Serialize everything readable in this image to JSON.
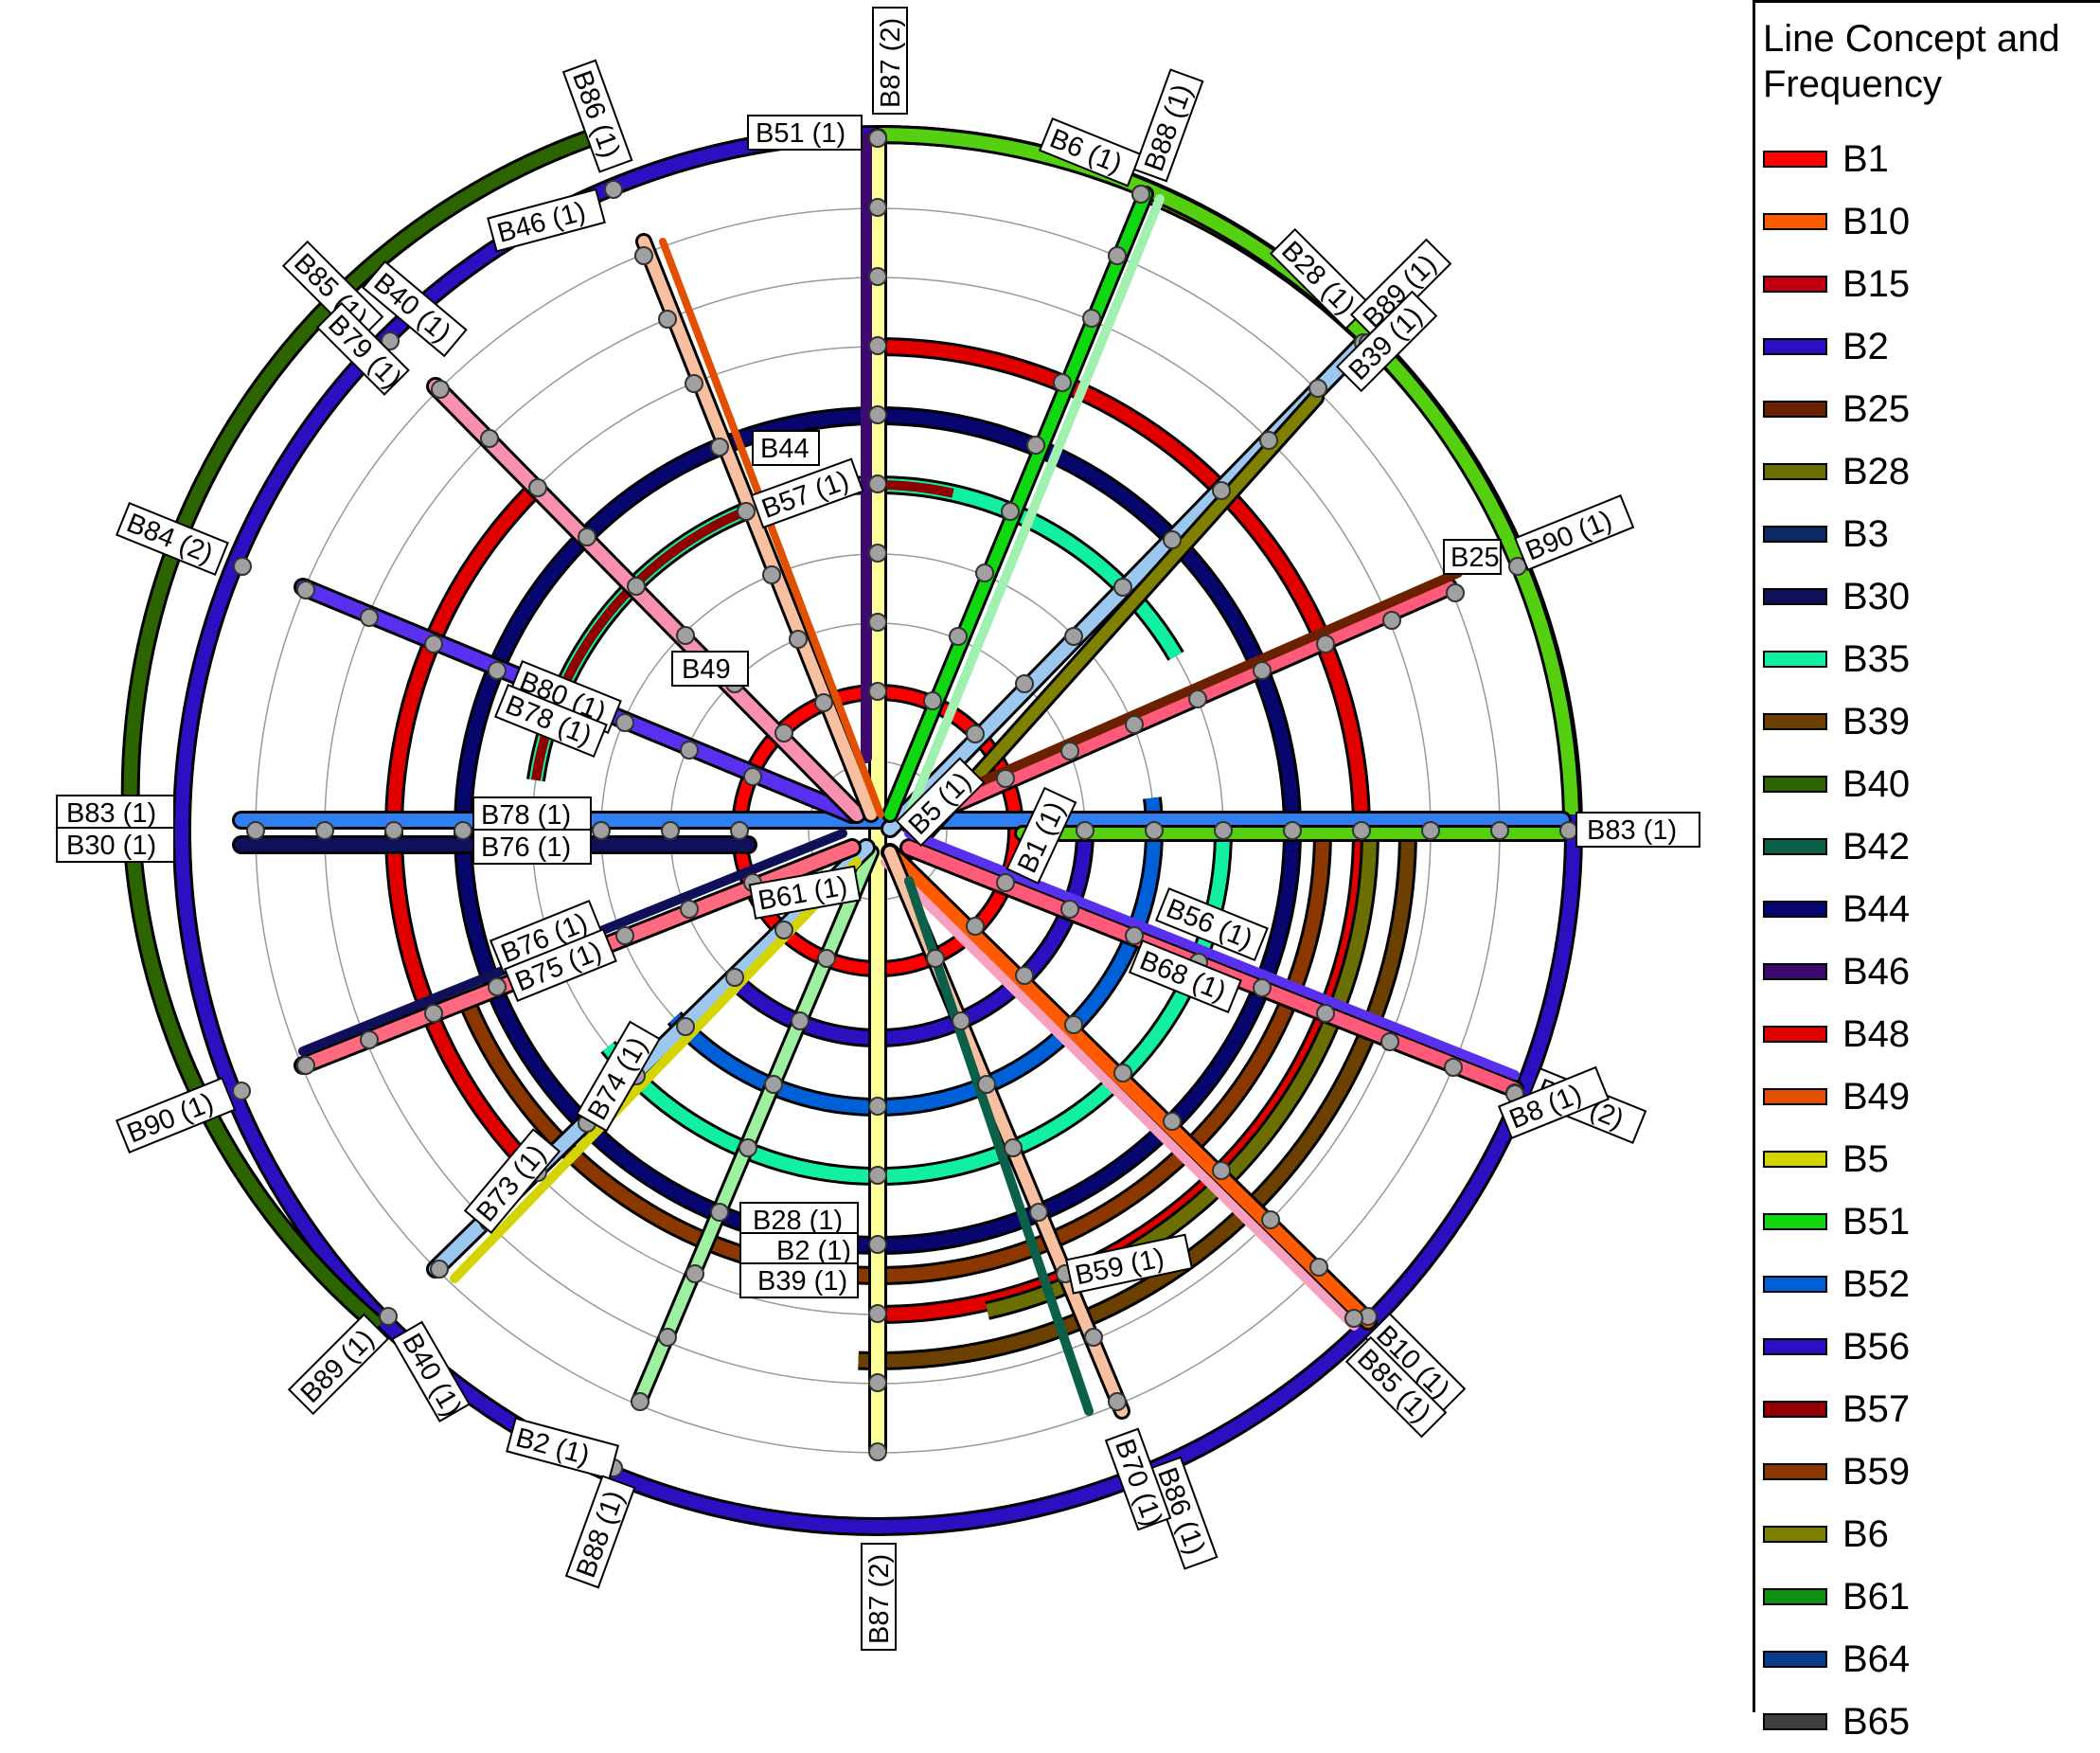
{
  "legend": {
    "title": "Line Concept and\nFrequency",
    "items": [
      {
        "label": "B1",
        "color": "#ff0000"
      },
      {
        "label": "B10",
        "color": "#ff5a00"
      },
      {
        "label": "B15",
        "color": "#c00010"
      },
      {
        "label": "B2",
        "color": "#2a10c0"
      },
      {
        "label": "B25",
        "color": "#6b2000"
      },
      {
        "label": "B28",
        "color": "#6b6e00"
      },
      {
        "label": "B3",
        "color": "#0c2b66"
      },
      {
        "label": "B30",
        "color": "#10105a"
      },
      {
        "label": "B35",
        "color": "#10f0a0"
      },
      {
        "label": "B39",
        "color": "#6b4000"
      },
      {
        "label": "B40",
        "color": "#2c6400"
      },
      {
        "label": "B42",
        "color": "#0a6048"
      },
      {
        "label": "B44",
        "color": "#06066e"
      },
      {
        "label": "B46",
        "color": "#3e0a70"
      },
      {
        "label": "B48",
        "color": "#e00000"
      },
      {
        "label": "B49",
        "color": "#e05000"
      },
      {
        "label": "B5",
        "color": "#d4d400"
      },
      {
        "label": "B51",
        "color": "#10d810"
      },
      {
        "label": "B52",
        "color": "#0060d8"
      },
      {
        "label": "B56",
        "color": "#2a10c0"
      },
      {
        "label": "B57",
        "color": "#900000"
      },
      {
        "label": "B59",
        "color": "#8a3800"
      },
      {
        "label": "B6",
        "color": "#808000"
      },
      {
        "label": "B61",
        "color": "#109010"
      },
      {
        "label": "B64",
        "color": "#0c3c90"
      },
      {
        "label": "B65",
        "color": "#404040"
      }
    ]
  },
  "labels": {
    "b87_top": "B87 (2)",
    "b51": "B51 (1)",
    "b86": "B86 (1)",
    "b46": "B46 (1)",
    "b6": "B6 (1)",
    "b88_top": "B88 (1)",
    "b28": "B28 (1)",
    "b89": "B89 (1)",
    "b39": "B39 (1)",
    "b85": "B85 (1)",
    "b40": "B40 (1)",
    "b79": "B79 (1)",
    "b84_left": "B84 (2)",
    "b25": "B25",
    "b90_right": "B90 (1)",
    "b83_left": "B83 (1)",
    "b30_left": "B30 (1)",
    "b78": "B78 (1)",
    "b76": "B76 (1)",
    "b83_right": "B83 (1)",
    "b80": "B80 (1)",
    "b78b": "B78 (1)",
    "b49": "B49",
    "b44": "B44",
    "b57": "B57 (1)",
    "b56": "B56 (1)",
    "b68": "B68 (1)",
    "b84_right": "B84 (2)",
    "b8": "B8 (1)",
    "b90_left": "B90 (1)",
    "b76b": "B76 (1)",
    "b75": "B75 (1)",
    "b61": "B61 (1)",
    "b74": "B74 (1)",
    "b73": "B73 (1)",
    "b28b": "B28 (1)",
    "b2": "B2 (1)",
    "b39b": "B39 (1)",
    "b59": "B59 (1)",
    "b10": "B10 (1)",
    "b85b": "B85 (1)",
    "b2_bottom": "B2 (1)",
    "b88_bottom": "B88 (1)",
    "b87_bottom": "B87 (2)",
    "b86_bottom": "B86 (1)",
    "b70": "B70 (1)",
    "b89_bottom": "B89 (1)",
    "b40_bottom": "B40 (1)",
    "b1": "B1 (1)",
    "b5": "B5 (1)"
  },
  "station_mark": "S"
}
